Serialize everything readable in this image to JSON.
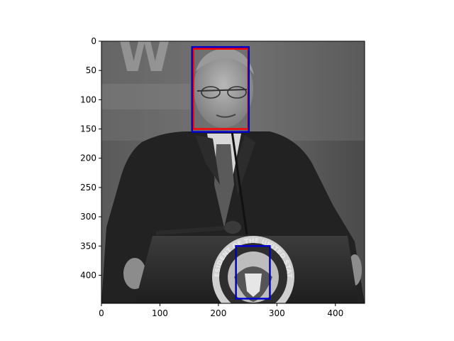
{
  "chart_data": {
    "type": "image",
    "xlim": [
      0,
      450
    ],
    "ylim": [
      448,
      0
    ],
    "xticks": [
      0,
      100,
      200,
      300,
      400
    ],
    "yticks": [
      0,
      50,
      100,
      150,
      200,
      250,
      300,
      350,
      400
    ],
    "image": "grayscale photograph of a man in a suit speaking at a podium bearing the presidential seal",
    "seal_text": "PRESIDENT OF THE UNITED STATES",
    "boxes": [
      {
        "label": "",
        "color": "#ff0000",
        "x0": 157,
        "y0": 13,
        "x1": 251,
        "y1": 150
      },
      {
        "label": "",
        "color": "#0000cc",
        "x0": 155,
        "y0": 10,
        "x1": 252,
        "y1": 155
      },
      {
        "label": "",
        "color": "#0000cc",
        "x0": 230,
        "y0": 350,
        "x1": 288,
        "y1": 440
      }
    ]
  },
  "icons": {
    "photo": "photograph",
    "seal": "presidential-seal-icon"
  }
}
